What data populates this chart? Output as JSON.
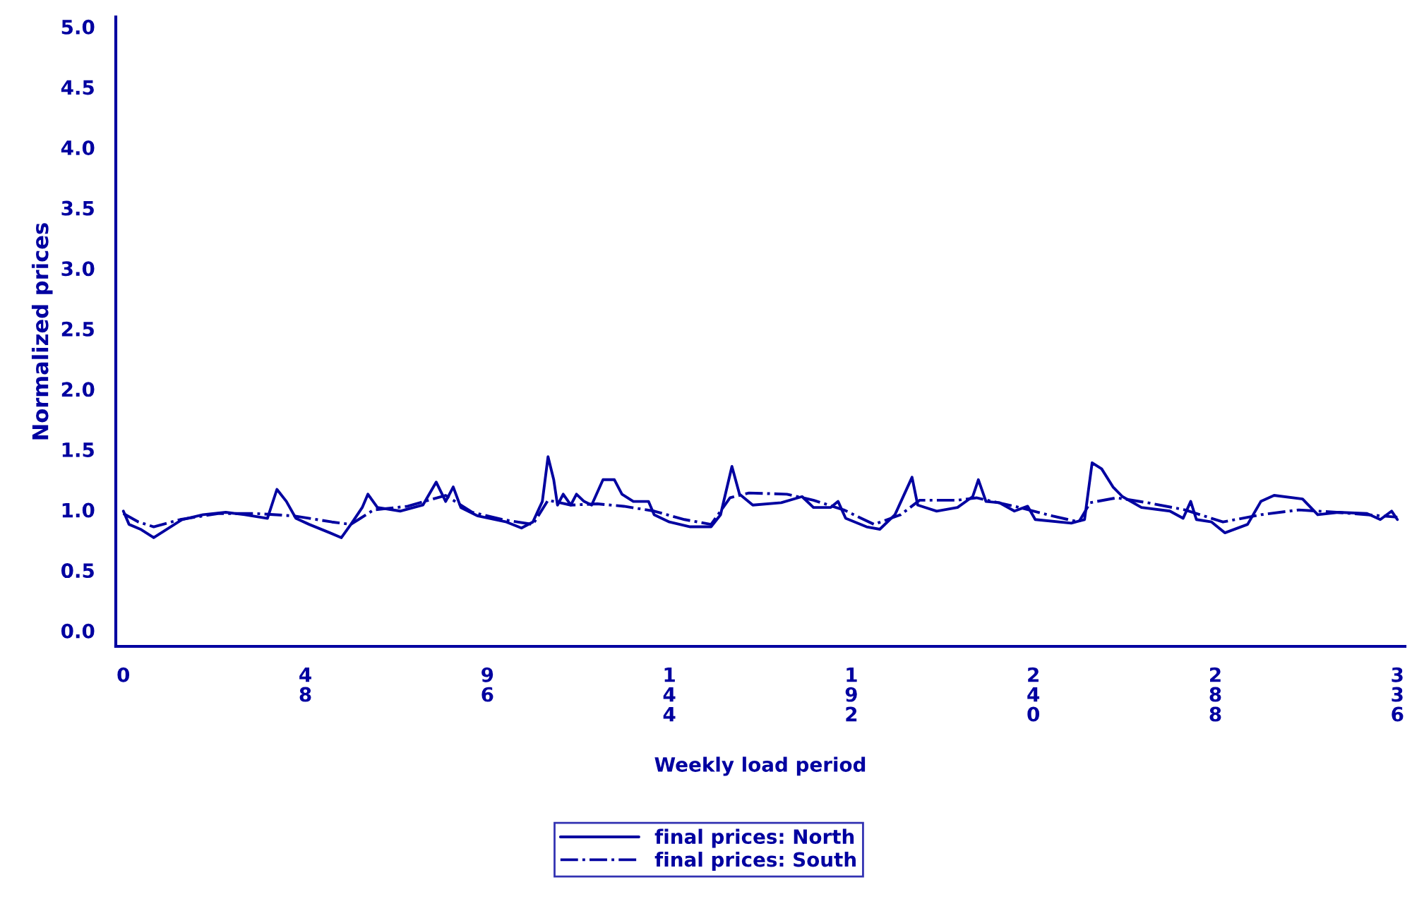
{
  "chart_data": {
    "type": "line",
    "xlabel": "Weekly load period",
    "ylabel": "Normalized prices",
    "xlim": [
      -2,
      338
    ],
    "ylim": [
      -0.13,
      5.08
    ],
    "xticks": [
      0,
      48,
      96,
      144,
      192,
      240,
      288,
      336
    ],
    "yticks": [
      {
        "value": 0,
        "label": "0.0"
      },
      {
        "value": 0.5,
        "label": "0.5"
      },
      {
        "value": 1,
        "label": "1.0"
      },
      {
        "value": 1.5,
        "label": "1.5"
      },
      {
        "value": 2,
        "label": "2.0"
      },
      {
        "value": 2.5,
        "label": "2.5"
      },
      {
        "value": 3,
        "label": "3.0"
      },
      {
        "value": 3.5,
        "label": "3.5"
      },
      {
        "value": 4,
        "label": "4.0"
      },
      {
        "value": 4.5,
        "label": "4.5"
      },
      {
        "value": 5,
        "label": "5.0"
      }
    ],
    "grid": false,
    "legend": "bottom",
    "marker": "none",
    "series": [
      {
        "name": "final prices: North",
        "color": "#0000a0",
        "line_style": "solid",
        "x": [
          0,
          1.5,
          4.5,
          8,
          11,
          15.5,
          21,
          27,
          32,
          38,
          40.5,
          43,
          45.5,
          49,
          54.5,
          57.5,
          60,
          63,
          64.5,
          67,
          73,
          79,
          82.5,
          85,
          87,
          89,
          93.5,
          101,
          105,
          108,
          110.5,
          112,
          113.5,
          114.5,
          116,
          118,
          119.5,
          121.5,
          123.5,
          126.5,
          129.5,
          131.5,
          134.5,
          138.5,
          140,
          144,
          149.5,
          155,
          157.5,
          160.5,
          162.5,
          166,
          173.5,
          179,
          182,
          186.5,
          188.5,
          190.5,
          196,
          199.5,
          203.5,
          208,
          209.5,
          214.5,
          220,
          224,
          225.5,
          227.5,
          231,
          235,
          238.5,
          240.5,
          250,
          253.5,
          255.5,
          258,
          261,
          263.5,
          268.5,
          276,
          279.5,
          281.5,
          283,
          287,
          290.5,
          296.5,
          300,
          303.5,
          311,
          315,
          320.5,
          328,
          331.5,
          334.5,
          336
        ],
        "values": [
          0.99,
          0.88,
          0.84,
          0.77,
          0.83,
          0.92,
          0.96,
          0.98,
          0.96,
          0.93,
          1.17,
          1.07,
          0.93,
          0.88,
          0.81,
          0.77,
          0.88,
          1.02,
          1.13,
          1.02,
          0.99,
          1.04,
          1.23,
          1.07,
          1.19,
          1.02,
          0.95,
          0.9,
          0.85,
          0.9,
          1.07,
          1.44,
          1.25,
          1.04,
          1.13,
          1.04,
          1.13,
          1.07,
          1.04,
          1.25,
          1.25,
          1.13,
          1.07,
          1.07,
          0.96,
          0.9,
          0.86,
          0.86,
          0.96,
          1.36,
          1.13,
          1.04,
          1.06,
          1.11,
          1.02,
          1.02,
          1.07,
          0.93,
          0.86,
          0.84,
          0.96,
          1.27,
          1.04,
          0.99,
          1.02,
          1.11,
          1.25,
          1.07,
          1.06,
          0.99,
          1.03,
          0.92,
          0.89,
          0.92,
          1.39,
          1.34,
          1.19,
          1.11,
          1.02,
          0.99,
          0.93,
          1.07,
          0.92,
          0.9,
          0.81,
          0.88,
          1.07,
          1.12,
          1.09,
          0.96,
          0.98,
          0.97,
          0.92,
          0.99,
          0.92
        ]
      },
      {
        "name": "final prices: South",
        "color": "#0000a0",
        "line_style": "dashdot",
        "x": [
          0,
          4,
          8,
          15,
          25,
          35,
          45,
          55,
          60,
          66,
          75,
          85,
          92,
          100,
          108,
          112,
          118,
          125,
          132,
          140,
          148,
          155,
          160,
          165,
          175,
          182,
          190,
          198,
          205,
          210,
          220,
          225,
          235,
          245,
          252,
          255,
          262,
          270,
          280,
          290,
          300,
          310,
          320,
          336
        ],
        "values": [
          0.97,
          0.9,
          0.86,
          0.92,
          0.97,
          0.97,
          0.95,
          0.9,
          0.88,
          1.0,
          1.03,
          1.12,
          0.98,
          0.92,
          0.88,
          1.08,
          1.04,
          1.05,
          1.03,
          0.99,
          0.92,
          0.88,
          1.1,
          1.14,
          1.13,
          1.08,
          1.0,
          0.88,
          0.96,
          1.08,
          1.08,
          1.1,
          1.03,
          0.95,
          0.9,
          1.06,
          1.1,
          1.06,
          1.0,
          0.9,
          0.96,
          1.0,
          0.98,
          0.94
        ]
      }
    ]
  }
}
